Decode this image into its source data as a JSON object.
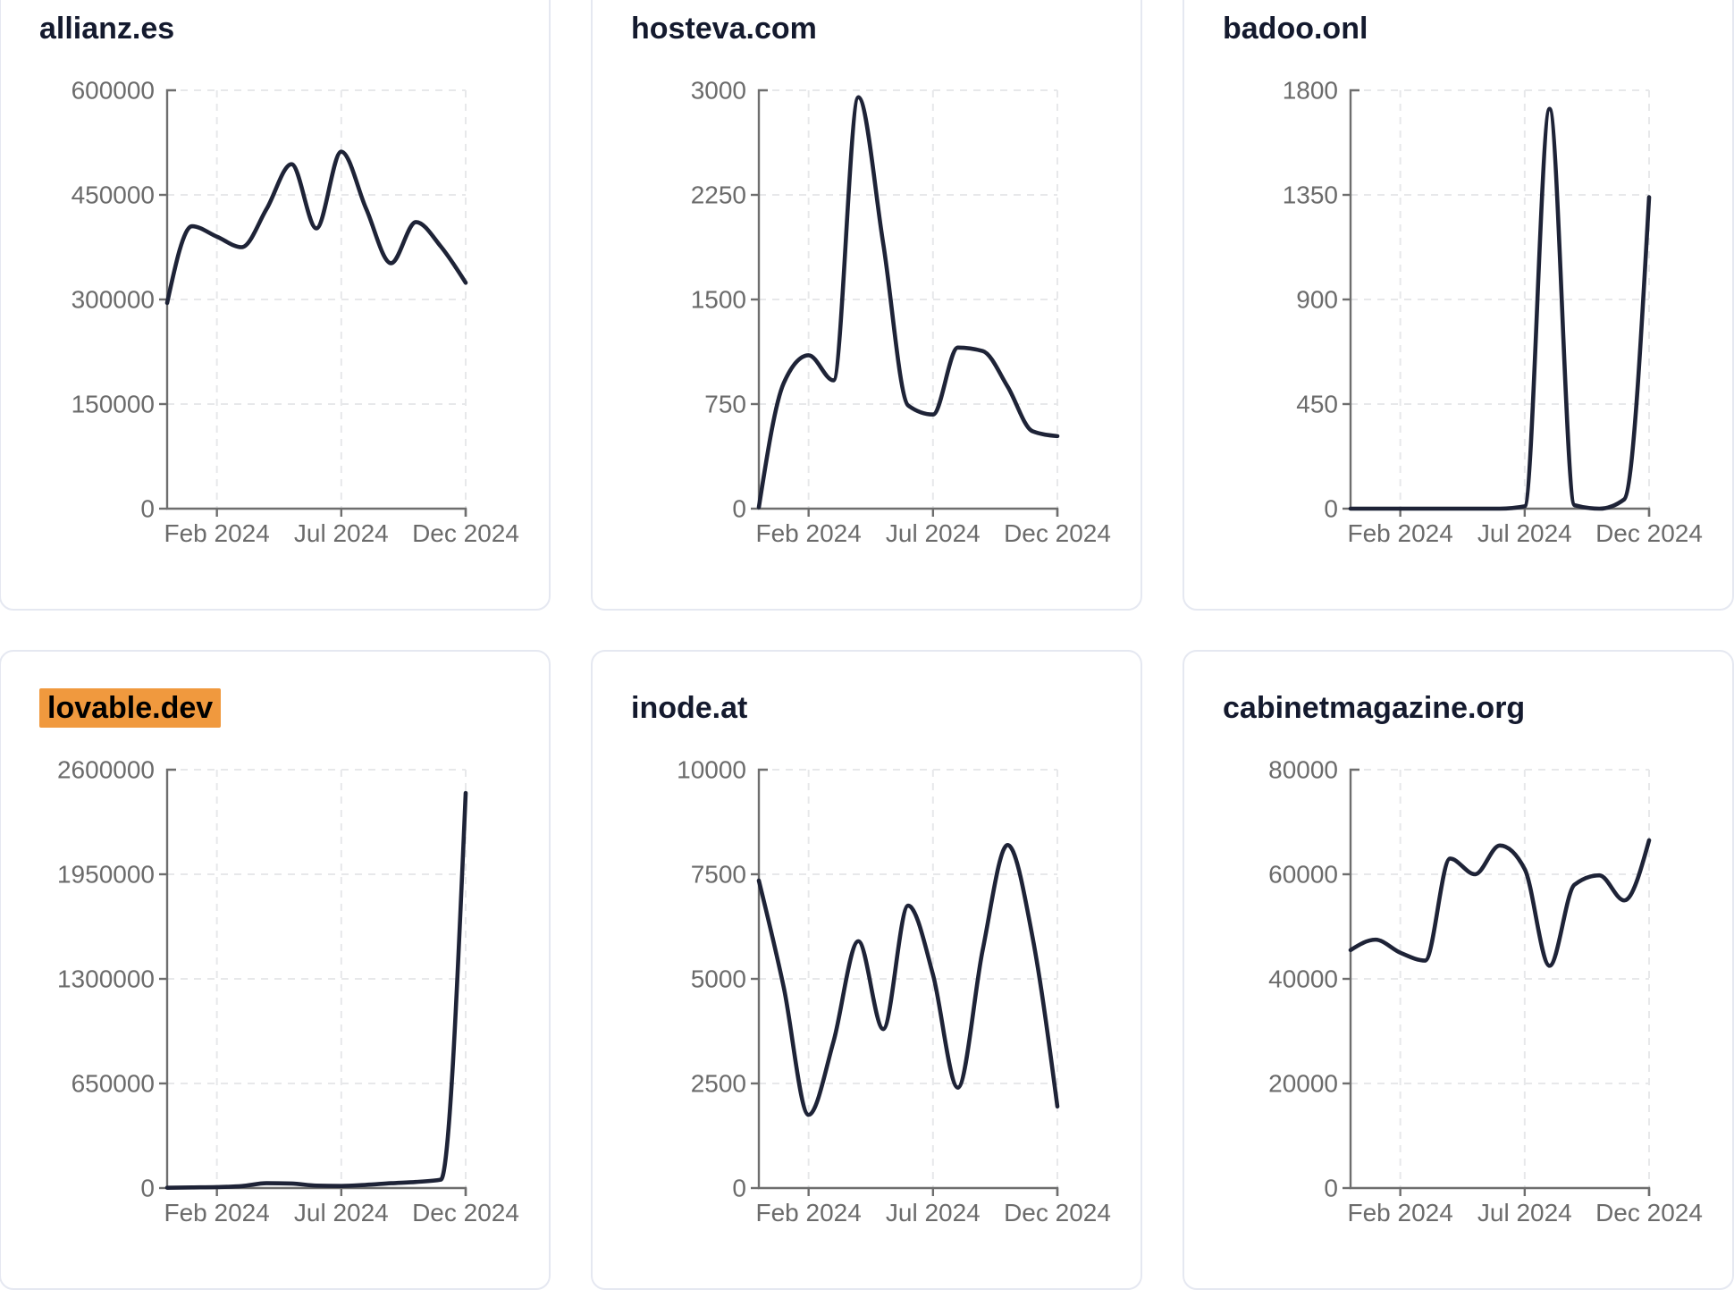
{
  "page": {
    "background": "#ffffff",
    "layout": "3x2-grid-of-domain-traffic-sparkline-cards"
  },
  "colors": {
    "card_background": "#ffffff",
    "card_border": "#e5e8f1",
    "title_text": "#141a2e",
    "line": "#1e2337",
    "axis": "#6e6e6e",
    "tick_label": "#6b6b6b",
    "gridline": "#e7e8ea",
    "highlight_background": "#f0993e",
    "highlight_text": "#000000"
  },
  "x_axis": {
    "months": [
      "Dec 2023",
      "Jan 2024",
      "Feb 2024",
      "Mar 2024",
      "Apr 2024",
      "May 2024",
      "Jun 2024",
      "Jul 2024",
      "Aug 2024",
      "Sep 2024",
      "Oct 2024",
      "Nov 2024",
      "Dec 2024"
    ],
    "tick_labels": [
      "Feb 2024",
      "Jul 2024",
      "Dec 2024"
    ],
    "tick_month_indices": [
      2,
      7,
      12
    ]
  },
  "chart_data": [
    {
      "type": "line",
      "title": "allianz.es",
      "highlighted": false,
      "ylim": [
        0,
        600000
      ],
      "y_ticks": [
        0,
        150000,
        300000,
        450000,
        600000
      ],
      "x": [
        "Dec 2023",
        "Jan 2024",
        "Feb 2024",
        "Mar 2024",
        "Apr 2024",
        "May 2024",
        "Jun 2024",
        "Jul 2024",
        "Aug 2024",
        "Sep 2024",
        "Oct 2024",
        "Nov 2024",
        "Dec 2024"
      ],
      "values": [
        295000,
        405000,
        390000,
        375000,
        430000,
        494000,
        402000,
        512000,
        430000,
        352000,
        411000,
        376000,
        324000
      ]
    },
    {
      "type": "line",
      "title": "hosteva.com",
      "highlighted": false,
      "ylim": [
        0,
        3000
      ],
      "y_ticks": [
        0,
        750,
        1500,
        2250,
        3000
      ],
      "x": [
        "Dec 2023",
        "Jan 2024",
        "Feb 2024",
        "Mar 2024",
        "Apr 2024",
        "May 2024",
        "Jun 2024",
        "Jul 2024",
        "Aug 2024",
        "Sep 2024",
        "Oct 2024",
        "Nov 2024",
        "Dec 2024"
      ],
      "values": [
        10,
        900,
        1100,
        920,
        2950,
        1900,
        740,
        675,
        1155,
        1130,
        875,
        555,
        520
      ]
    },
    {
      "type": "line",
      "title": "badoo.onl",
      "highlighted": false,
      "ylim": [
        0,
        1800
      ],
      "y_ticks": [
        0,
        450,
        900,
        1350,
        1800
      ],
      "x": [
        "Dec 2023",
        "Jan 2024",
        "Feb 2024",
        "Mar 2024",
        "Apr 2024",
        "May 2024",
        "Jun 2024",
        "Jul 2024",
        "Aug 2024",
        "Sep 2024",
        "Oct 2024",
        "Nov 2024",
        "Dec 2024"
      ],
      "values": [
        0,
        0,
        0,
        0,
        0,
        0,
        0,
        10,
        1720,
        15,
        0,
        40,
        1340
      ]
    },
    {
      "type": "line",
      "title": "lovable.dev",
      "highlighted": true,
      "ylim": [
        0,
        2600000
      ],
      "y_ticks": [
        0,
        650000,
        1300000,
        1950000,
        2600000
      ],
      "x": [
        "Dec 2023",
        "Jan 2024",
        "Feb 2024",
        "Mar 2024",
        "Apr 2024",
        "May 2024",
        "Jun 2024",
        "Jul 2024",
        "Aug 2024",
        "Sep 2024",
        "Oct 2024",
        "Nov 2024",
        "Dec 2024"
      ],
      "values": [
        2000,
        4000,
        6000,
        12000,
        30000,
        28000,
        15000,
        13000,
        20000,
        30000,
        38000,
        52000,
        2455000
      ]
    },
    {
      "type": "line",
      "title": "inode.at",
      "highlighted": false,
      "ylim": [
        0,
        10000
      ],
      "y_ticks": [
        0,
        2500,
        5000,
        7500,
        10000
      ],
      "x": [
        "Dec 2023",
        "Jan 2024",
        "Feb 2024",
        "Mar 2024",
        "Apr 2024",
        "May 2024",
        "Jun 2024",
        "Jul 2024",
        "Aug 2024",
        "Sep 2024",
        "Oct 2024",
        "Nov 2024",
        "Dec 2024"
      ],
      "values": [
        7350,
        4800,
        1750,
        3500,
        5900,
        3800,
        6750,
        5100,
        2400,
        5700,
        8200,
        6000,
        1950
      ]
    },
    {
      "type": "line",
      "title": "cabinetmagazine.org",
      "highlighted": false,
      "ylim": [
        0,
        80000
      ],
      "y_ticks": [
        0,
        20000,
        40000,
        60000,
        80000
      ],
      "x": [
        "Dec 2023",
        "Jan 2024",
        "Feb 2024",
        "Mar 2024",
        "Apr 2024",
        "May 2024",
        "Jun 2024",
        "Jul 2024",
        "Aug 2024",
        "Sep 2024",
        "Oct 2024",
        "Nov 2024",
        "Dec 2024"
      ],
      "values": [
        45500,
        47500,
        45000,
        43500,
        63000,
        60000,
        65500,
        61000,
        42500,
        58000,
        59800,
        55000,
        66500
      ]
    }
  ]
}
